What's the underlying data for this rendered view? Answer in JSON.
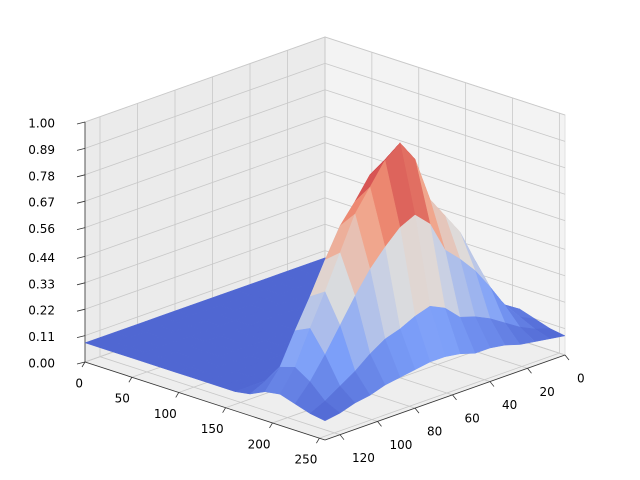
{
  "chart_data": {
    "type": "surface3d",
    "colormap": "coolwarm",
    "grid": true,
    "x": [
      0,
      16,
      32,
      48,
      64,
      80,
      96,
      112,
      128,
      144,
      160,
      176,
      192,
      208,
      224,
      240,
      256
    ],
    "y": [
      0,
      8,
      16,
      24,
      32,
      40,
      48,
      56,
      64,
      72,
      80,
      88,
      96,
      104,
      112,
      120,
      128
    ],
    "z": [
      [
        0.08,
        0.08,
        0.08,
        0.08,
        0.08,
        0.08,
        0.08,
        0.08,
        0.08,
        0.08,
        0.08,
        0.09,
        0.12,
        0.13,
        0.11,
        0.09,
        0.08
      ],
      [
        0.08,
        0.08,
        0.08,
        0.08,
        0.08,
        0.08,
        0.08,
        0.08,
        0.08,
        0.08,
        0.08,
        0.11,
        0.16,
        0.17,
        0.14,
        0.11,
        0.09
      ],
      [
        0.08,
        0.08,
        0.08,
        0.08,
        0.08,
        0.08,
        0.08,
        0.08,
        0.08,
        0.08,
        0.08,
        0.14,
        0.25,
        0.26,
        0.21,
        0.14,
        0.1
      ],
      [
        0.08,
        0.08,
        0.08,
        0.08,
        0.08,
        0.08,
        0.08,
        0.08,
        0.08,
        0.08,
        0.08,
        0.18,
        0.37,
        0.4,
        0.31,
        0.18,
        0.11
      ],
      [
        0.08,
        0.08,
        0.08,
        0.08,
        0.08,
        0.08,
        0.08,
        0.08,
        0.08,
        0.08,
        0.08,
        0.22,
        0.49,
        0.54,
        0.4,
        0.22,
        0.13
      ],
      [
        0.08,
        0.08,
        0.08,
        0.08,
        0.08,
        0.08,
        0.08,
        0.08,
        0.08,
        0.08,
        0.08,
        0.25,
        0.58,
        0.63,
        0.47,
        0.25,
        0.14
      ],
      [
        0.08,
        0.08,
        0.08,
        0.08,
        0.08,
        0.08,
        0.08,
        0.08,
        0.08,
        0.08,
        0.08,
        0.27,
        0.66,
        0.72,
        0.53,
        0.27,
        0.14
      ],
      [
        0.08,
        0.08,
        0.08,
        0.08,
        0.08,
        0.08,
        0.08,
        0.08,
        0.08,
        0.08,
        0.08,
        0.33,
        0.83,
        0.91,
        0.66,
        0.33,
        0.16
      ],
      [
        0.08,
        0.08,
        0.08,
        0.08,
        0.08,
        0.08,
        0.08,
        0.08,
        0.08,
        0.08,
        0.08,
        0.36,
        0.91,
        1.0,
        0.72,
        0.36,
        0.17
      ],
      [
        0.08,
        0.08,
        0.08,
        0.08,
        0.08,
        0.08,
        0.08,
        0.08,
        0.08,
        0.08,
        0.08,
        0.34,
        0.87,
        0.95,
        0.69,
        0.34,
        0.17
      ],
      [
        0.08,
        0.08,
        0.08,
        0.08,
        0.08,
        0.08,
        0.08,
        0.08,
        0.08,
        0.08,
        0.08,
        0.31,
        0.78,
        0.86,
        0.63,
        0.31,
        0.16
      ],
      [
        0.08,
        0.08,
        0.08,
        0.08,
        0.08,
        0.08,
        0.08,
        0.08,
        0.08,
        0.08,
        0.08,
        0.29,
        0.7,
        0.77,
        0.56,
        0.29,
        0.15
      ],
      [
        0.08,
        0.08,
        0.08,
        0.08,
        0.08,
        0.08,
        0.08,
        0.08,
        0.08,
        0.08,
        0.08,
        0.25,
        0.58,
        0.63,
        0.47,
        0.25,
        0.14
      ],
      [
        0.08,
        0.08,
        0.08,
        0.08,
        0.08,
        0.08,
        0.08,
        0.08,
        0.08,
        0.08,
        0.08,
        0.2,
        0.45,
        0.49,
        0.37,
        0.2,
        0.12
      ],
      [
        0.08,
        0.08,
        0.08,
        0.08,
        0.08,
        0.08,
        0.08,
        0.08,
        0.08,
        0.08,
        0.08,
        0.16,
        0.33,
        0.36,
        0.27,
        0.16,
        0.11
      ],
      [
        0.08,
        0.08,
        0.08,
        0.08,
        0.08,
        0.08,
        0.08,
        0.08,
        0.08,
        0.08,
        0.08,
        0.12,
        0.2,
        0.22,
        0.18,
        0.12,
        0.09
      ],
      [
        0.08,
        0.08,
        0.08,
        0.08,
        0.08,
        0.08,
        0.08,
        0.08,
        0.08,
        0.08,
        0.08,
        0.09,
        0.12,
        0.13,
        0.11,
        0.09,
        0.08
      ]
    ],
    "xlim": [
      0,
      256
    ],
    "ylim": [
      0,
      128
    ],
    "zlim": [
      0,
      1
    ],
    "xticks": [
      0,
      50,
      100,
      150,
      200,
      250
    ],
    "yticks": [
      0,
      20,
      40,
      60,
      80,
      100,
      120
    ],
    "zticks": [
      {
        "value": 0,
        "label": "0.00"
      },
      {
        "value": 0.11,
        "label": "0.11"
      },
      {
        "value": 0.22,
        "label": "0.22"
      },
      {
        "value": 0.33,
        "label": "0.33"
      },
      {
        "value": 0.44,
        "label": "0.44"
      },
      {
        "value": 0.56,
        "label": "0.56"
      },
      {
        "value": 0.67,
        "label": "0.67"
      },
      {
        "value": 0.78,
        "label": "0.78"
      },
      {
        "value": 0.89,
        "label": "0.89"
      },
      {
        "value": 1,
        "label": "1.00"
      }
    ]
  }
}
